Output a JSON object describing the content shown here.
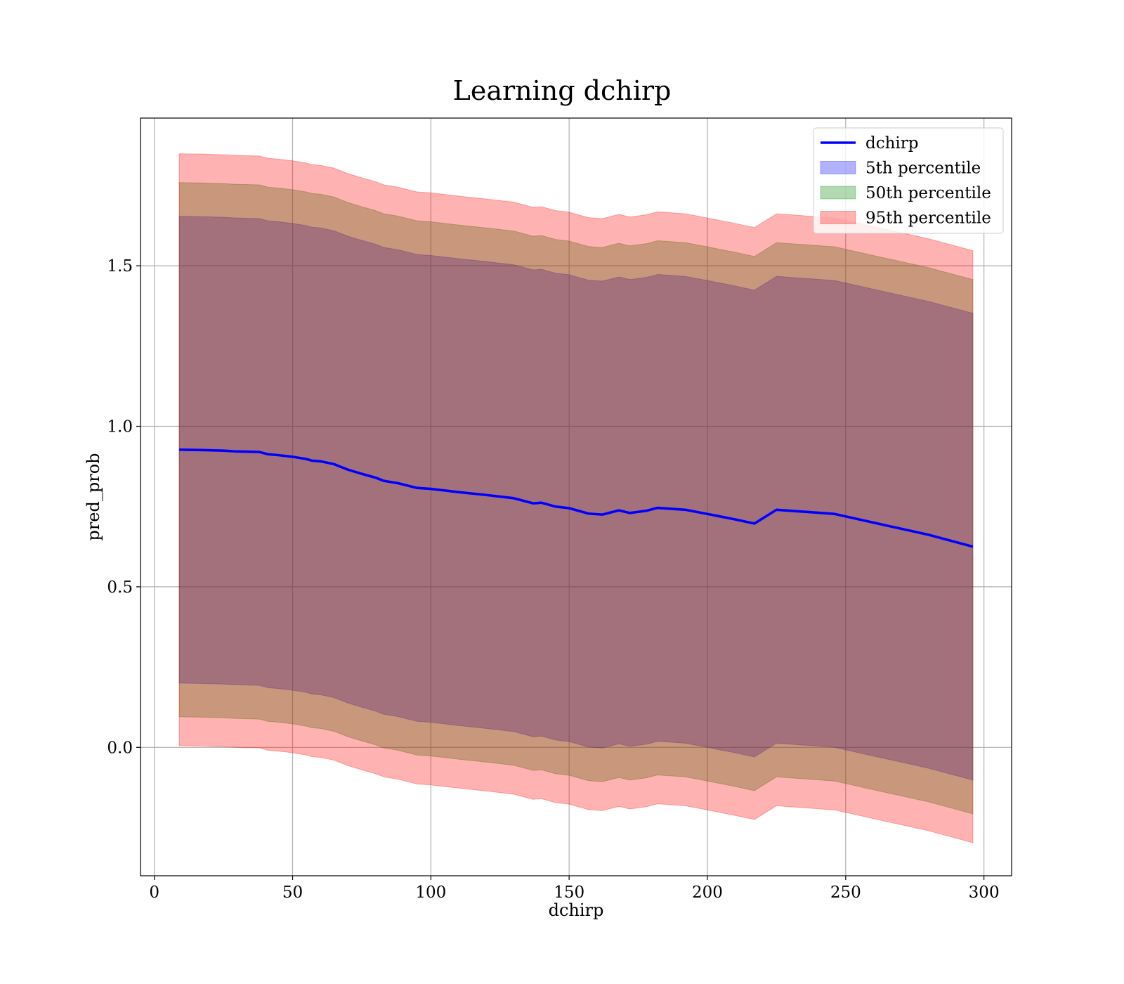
{
  "chart_data": {
    "type": "line",
    "title": "Learning dchirp",
    "xlabel": "dchirp",
    "ylabel": "pred_prob",
    "xlim": [
      -5,
      310
    ],
    "ylim": [
      -0.4,
      1.96
    ],
    "xticks": [
      0,
      50,
      100,
      150,
      200,
      250,
      300
    ],
    "xtick_labels": [
      "0",
      "50",
      "100",
      "150",
      "200",
      "250",
      "300"
    ],
    "yticks": [
      0.0,
      0.5,
      1.0,
      1.5
    ],
    "ytick_labels": [
      "0.0",
      "0.5",
      "1.0",
      "1.5"
    ],
    "grid": true,
    "legend_position": "top-right",
    "x": [
      9,
      17,
      25,
      29,
      33,
      38,
      41,
      45,
      50,
      55,
      57,
      60,
      65,
      70,
      75,
      80,
      83,
      88,
      95,
      100,
      110,
      120,
      130,
      137,
      140,
      145,
      150,
      157,
      162,
      168,
      172,
      178,
      182,
      192,
      200,
      210,
      217,
      225,
      246,
      260,
      280,
      296
    ],
    "series": [
      {
        "name": "dchirp",
        "kind": "line",
        "color": "#0000ff",
        "values": [
          0.927,
          0.926,
          0.924,
          0.922,
          0.921,
          0.92,
          0.913,
          0.91,
          0.905,
          0.898,
          0.893,
          0.891,
          0.882,
          0.865,
          0.852,
          0.84,
          0.83,
          0.823,
          0.808,
          0.805,
          0.795,
          0.786,
          0.776,
          0.76,
          0.762,
          0.75,
          0.745,
          0.728,
          0.725,
          0.738,
          0.73,
          0.737,
          0.746,
          0.74,
          0.727,
          0.71,
          0.697,
          0.74,
          0.727,
          0.7,
          0.662,
          0.625
        ]
      },
      {
        "name": "5th percentile",
        "kind": "band",
        "color": "#0000ff",
        "lower": [
          0.2,
          0.199,
          0.197,
          0.195,
          0.194,
          0.193,
          0.186,
          0.183,
          0.178,
          0.171,
          0.166,
          0.164,
          0.155,
          0.138,
          0.125,
          0.113,
          0.103,
          0.096,
          0.081,
          0.078,
          0.068,
          0.059,
          0.049,
          0.033,
          0.035,
          0.023,
          0.018,
          0.001,
          -0.002,
          0.011,
          0.003,
          0.01,
          0.019,
          0.013,
          0.0,
          -0.017,
          -0.03,
          0.013,
          0.0,
          -0.027,
          -0.065,
          -0.102
        ],
        "upper": [
          1.654,
          1.653,
          1.651,
          1.649,
          1.648,
          1.647,
          1.64,
          1.637,
          1.632,
          1.625,
          1.62,
          1.618,
          1.609,
          1.592,
          1.579,
          1.567,
          1.557,
          1.55,
          1.535,
          1.532,
          1.522,
          1.513,
          1.503,
          1.487,
          1.489,
          1.477,
          1.472,
          1.455,
          1.452,
          1.465,
          1.457,
          1.464,
          1.473,
          1.467,
          1.454,
          1.437,
          1.424,
          1.467,
          1.454,
          1.427,
          1.389,
          1.352
        ]
      },
      {
        "name": "50th percentile",
        "kind": "band",
        "color": "#008000",
        "lower": [
          0.095,
          0.094,
          0.092,
          0.09,
          0.089,
          0.088,
          0.081,
          0.078,
          0.073,
          0.066,
          0.061,
          0.059,
          0.05,
          0.033,
          0.02,
          0.008,
          -0.002,
          -0.009,
          -0.024,
          -0.027,
          -0.037,
          -0.046,
          -0.056,
          -0.072,
          -0.07,
          -0.082,
          -0.087,
          -0.104,
          -0.107,
          -0.094,
          -0.102,
          -0.095,
          -0.086,
          -0.092,
          -0.105,
          -0.122,
          -0.135,
          -0.092,
          -0.105,
          -0.132,
          -0.17,
          -0.207
        ],
        "upper": [
          1.759,
          1.758,
          1.756,
          1.754,
          1.753,
          1.752,
          1.745,
          1.742,
          1.737,
          1.73,
          1.725,
          1.723,
          1.714,
          1.697,
          1.684,
          1.672,
          1.662,
          1.655,
          1.64,
          1.637,
          1.627,
          1.618,
          1.608,
          1.592,
          1.594,
          1.582,
          1.577,
          1.56,
          1.557,
          1.57,
          1.562,
          1.569,
          1.578,
          1.572,
          1.559,
          1.542,
          1.529,
          1.572,
          1.559,
          1.532,
          1.494,
          1.457
        ]
      },
      {
        "name": "95th percentile",
        "kind": "band",
        "color": "#ff0000",
        "lower": [
          0.005,
          0.004,
          0.002,
          0.0,
          -0.001,
          -0.002,
          -0.009,
          -0.012,
          -0.017,
          -0.024,
          -0.029,
          -0.031,
          -0.04,
          -0.057,
          -0.07,
          -0.082,
          -0.092,
          -0.099,
          -0.114,
          -0.117,
          -0.127,
          -0.136,
          -0.146,
          -0.162,
          -0.16,
          -0.172,
          -0.177,
          -0.194,
          -0.197,
          -0.184,
          -0.192,
          -0.185,
          -0.176,
          -0.182,
          -0.195,
          -0.212,
          -0.225,
          -0.182,
          -0.195,
          -0.222,
          -0.26,
          -0.297
        ],
        "upper": [
          1.849,
          1.848,
          1.846,
          1.844,
          1.843,
          1.842,
          1.835,
          1.832,
          1.827,
          1.82,
          1.815,
          1.813,
          1.804,
          1.787,
          1.774,
          1.762,
          1.752,
          1.745,
          1.73,
          1.727,
          1.717,
          1.708,
          1.698,
          1.682,
          1.684,
          1.672,
          1.667,
          1.65,
          1.647,
          1.66,
          1.652,
          1.659,
          1.668,
          1.662,
          1.649,
          1.632,
          1.619,
          1.662,
          1.649,
          1.622,
          1.584,
          1.547
        ]
      }
    ]
  }
}
